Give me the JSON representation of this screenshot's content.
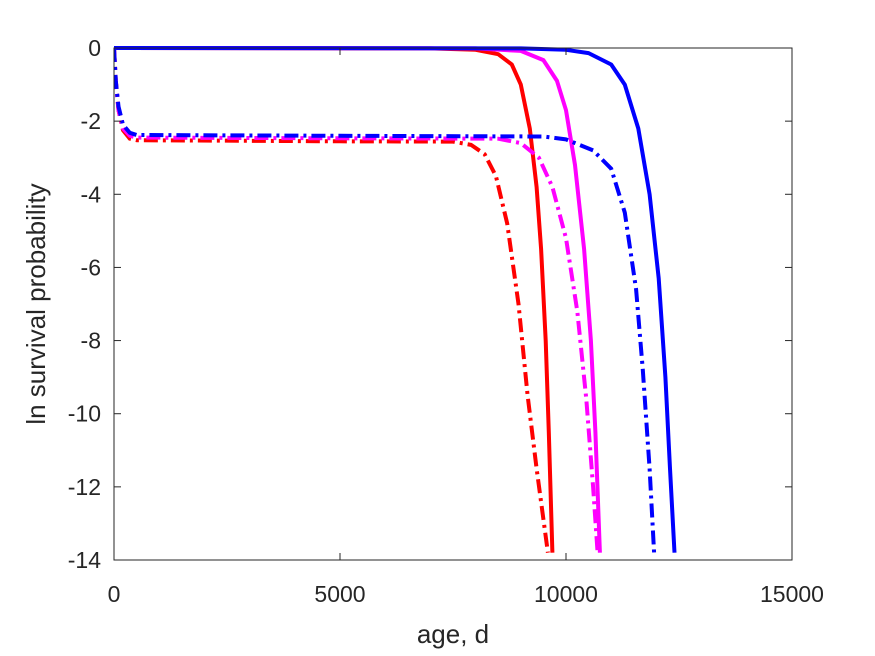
{
  "chart_data": {
    "type": "line",
    "title": "",
    "xlabel": "age, d",
    "ylabel": "ln survival probability",
    "xlim": [
      0,
      15000
    ],
    "ylim": [
      -14,
      0
    ],
    "xticks": [
      0,
      5000,
      10000,
      15000
    ],
    "xtick_labels": [
      "0",
      "5000",
      "10000",
      "15000"
    ],
    "yticks": [
      0,
      -2,
      -4,
      -6,
      -8,
      -10,
      -12,
      -14
    ],
    "ytick_labels": [
      "0",
      "-2",
      "-4",
      "-6",
      "-8",
      "-10",
      "-12",
      "-14"
    ],
    "grid": false,
    "legend": "none",
    "series": [
      {
        "color": "#ff0000",
        "style": "solid",
        "points": [
          [
            0,
            0
          ],
          [
            7000,
            -0.01
          ],
          [
            8000,
            -0.05
          ],
          [
            8500,
            -0.17
          ],
          [
            8800,
            -0.45
          ],
          [
            9000,
            -1.0
          ],
          [
            9200,
            -2.2
          ],
          [
            9350,
            -3.8
          ],
          [
            9450,
            -5.5
          ],
          [
            9550,
            -8.0
          ],
          [
            9620,
            -10.5
          ],
          [
            9700,
            -13.8
          ]
        ]
      },
      {
        "color": "#ff00ff",
        "style": "solid",
        "points": [
          [
            0,
            0
          ],
          [
            8000,
            -0.01
          ],
          [
            9000,
            -0.08
          ],
          [
            9500,
            -0.33
          ],
          [
            9800,
            -0.9
          ],
          [
            10000,
            -1.7
          ],
          [
            10200,
            -3.2
          ],
          [
            10400,
            -5.5
          ],
          [
            10550,
            -8.0
          ],
          [
            10650,
            -10.5
          ],
          [
            10750,
            -13.8
          ]
        ]
      },
      {
        "color": "#0000ff",
        "style": "solid",
        "points": [
          [
            0,
            0
          ],
          [
            9000,
            -0.01
          ],
          [
            10000,
            -0.05
          ],
          [
            10500,
            -0.14
          ],
          [
            11000,
            -0.45
          ],
          [
            11300,
            -1.0
          ],
          [
            11600,
            -2.2
          ],
          [
            11850,
            -4.0
          ],
          [
            12050,
            -6.3
          ],
          [
            12200,
            -9.0
          ],
          [
            12300,
            -11.5
          ],
          [
            12400,
            -13.8
          ]
        ]
      },
      {
        "color": "#ff0000",
        "style": "dashdot",
        "points": [
          [
            0,
            0
          ],
          [
            40,
            -0.9
          ],
          [
            100,
            -1.7
          ],
          [
            200,
            -2.25
          ],
          [
            350,
            -2.48
          ],
          [
            500,
            -2.52
          ],
          [
            5000,
            -2.55
          ],
          [
            7500,
            -2.56
          ],
          [
            7900,
            -2.65
          ],
          [
            8200,
            -2.9
          ],
          [
            8450,
            -3.5
          ],
          [
            8700,
            -4.8
          ],
          [
            8950,
            -7.0
          ],
          [
            9150,
            -9.5
          ],
          [
            9350,
            -11.5
          ],
          [
            9600,
            -13.8
          ]
        ]
      },
      {
        "color": "#ff00ff",
        "style": "dashdot",
        "points": [
          [
            0,
            0
          ],
          [
            40,
            -0.9
          ],
          [
            100,
            -1.7
          ],
          [
            200,
            -2.2
          ],
          [
            350,
            -2.4
          ],
          [
            500,
            -2.45
          ],
          [
            5000,
            -2.47
          ],
          [
            8500,
            -2.48
          ],
          [
            9000,
            -2.6
          ],
          [
            9400,
            -3.0
          ],
          [
            9700,
            -3.8
          ],
          [
            10000,
            -5.2
          ],
          [
            10250,
            -7.2
          ],
          [
            10450,
            -9.6
          ],
          [
            10600,
            -12.0
          ],
          [
            10700,
            -13.8
          ]
        ]
      },
      {
        "color": "#0000ff",
        "style": "dashdot",
        "points": [
          [
            0,
            0
          ],
          [
            40,
            -0.9
          ],
          [
            100,
            -1.6
          ],
          [
            200,
            -2.1
          ],
          [
            350,
            -2.32
          ],
          [
            500,
            -2.38
          ],
          [
            5000,
            -2.4
          ],
          [
            9500,
            -2.42
          ],
          [
            10000,
            -2.5
          ],
          [
            10600,
            -2.8
          ],
          [
            11000,
            -3.3
          ],
          [
            11300,
            -4.5
          ],
          [
            11550,
            -6.6
          ],
          [
            11700,
            -8.8
          ],
          [
            11850,
            -11.5
          ],
          [
            11950,
            -13.8
          ]
        ]
      }
    ]
  }
}
